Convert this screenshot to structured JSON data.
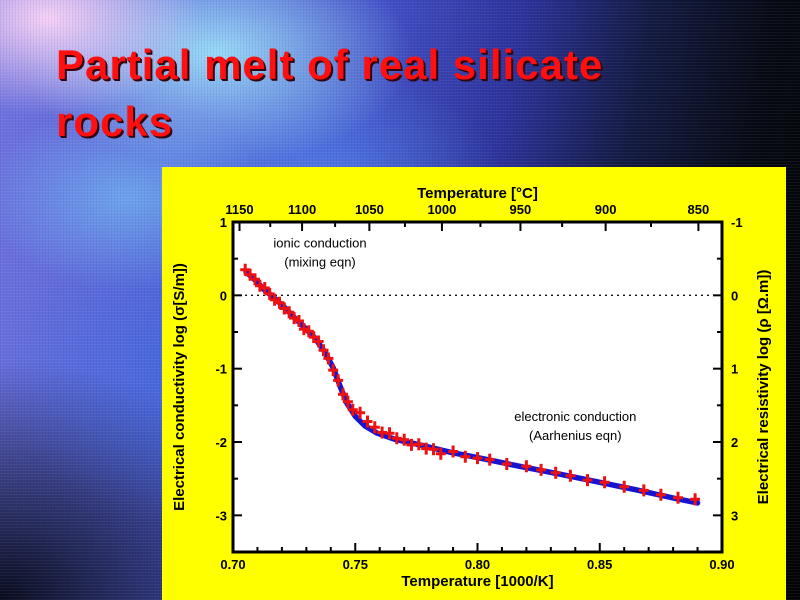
{
  "slide": {
    "title_line1": "Partial melt of real silicate",
    "title_line2": "rocks",
    "title_color": "#ff0f0f",
    "chart_background": "#ffff00"
  },
  "chart_data": {
    "type": "line",
    "title": "",
    "plot_background": "#ffffff",
    "grid": false,
    "top_axis": {
      "label": "Temperature [°C]",
      "ticks": [
        1150,
        1100,
        1050,
        1000,
        950,
        900,
        850
      ],
      "minor_ticks": [
        1125,
        1075,
        1025,
        975,
        925,
        875
      ]
    },
    "bottom_axis": {
      "label": "Temperature [1000/K]",
      "ticks": [
        0.7,
        0.75,
        0.8,
        0.85,
        0.9
      ],
      "range": [
        0.7,
        0.9
      ],
      "minor_step": 0.01
    },
    "left_axis": {
      "label": "Electrical conductivity log (σ[S/m])",
      "ticks": [
        1,
        0,
        -1,
        -2,
        -3
      ],
      "minor_ticks": [
        0.5,
        -0.5,
        -1.5,
        -2.5
      ],
      "range": [
        1,
        -3.5
      ]
    },
    "right_axis": {
      "label": "Electrical resistivity log (ρ [Ω.m])",
      "ticks": [
        -1,
        0,
        1,
        2,
        3
      ],
      "minor_ticks": [
        -0.5,
        0.5,
        1.5,
        2.5
      ]
    },
    "reference_line_y": 0,
    "annotations": [
      {
        "x": 0.7356,
        "y": 0.71,
        "lines": [
          "ionic conduction",
          "(mixing eqn)"
        ]
      },
      {
        "x": 0.84,
        "y": -1.66,
        "lines": [
          "electronic conduction",
          "(Aarhenius eqn)"
        ]
      }
    ],
    "line_series": {
      "name": "model curve",
      "color": "#1414d2",
      "points": [
        [
          0.7053,
          0.32
        ],
        [
          0.709,
          0.21
        ],
        [
          0.713,
          0.07
        ],
        [
          0.717,
          -0.04
        ],
        [
          0.721,
          -0.16
        ],
        [
          0.725,
          -0.3
        ],
        [
          0.729,
          -0.43
        ],
        [
          0.7335,
          -0.58
        ],
        [
          0.7375,
          -0.77
        ],
        [
          0.741,
          -0.99
        ],
        [
          0.7438,
          -1.24
        ],
        [
          0.7466,
          -1.47
        ],
        [
          0.75,
          -1.65
        ],
        [
          0.754,
          -1.78
        ],
        [
          0.759,
          -1.88
        ],
        [
          0.766,
          -1.96
        ],
        [
          0.7765,
          -2.04
        ],
        [
          0.789,
          -2.14
        ],
        [
          0.801,
          -2.22
        ],
        [
          0.817,
          -2.33
        ],
        [
          0.834,
          -2.44
        ],
        [
          0.85,
          -2.55
        ],
        [
          0.866,
          -2.66
        ],
        [
          0.881,
          -2.77
        ],
        [
          0.89,
          -2.83
        ]
      ]
    },
    "scatter_series": {
      "name": "measurements",
      "color": "#ee1111",
      "marker": "plus",
      "points": [
        [
          0.705,
          0.35
        ],
        [
          0.707,
          0.28
        ],
        [
          0.709,
          0.22
        ],
        [
          0.711,
          0.13
        ],
        [
          0.713,
          0.1
        ],
        [
          0.715,
          0.02
        ],
        [
          0.717,
          -0.06
        ],
        [
          0.719,
          -0.1
        ],
        [
          0.721,
          -0.18
        ],
        [
          0.723,
          -0.23
        ],
        [
          0.725,
          -0.31
        ],
        [
          0.727,
          -0.35
        ],
        [
          0.729,
          -0.46
        ],
        [
          0.731,
          -0.49
        ],
        [
          0.733,
          -0.57
        ],
        [
          0.735,
          -0.63
        ],
        [
          0.737,
          -0.75
        ],
        [
          0.739,
          -0.86
        ],
        [
          0.741,
          -1.02
        ],
        [
          0.743,
          -1.16
        ],
        [
          0.745,
          -1.35
        ],
        [
          0.747,
          -1.45
        ],
        [
          0.749,
          -1.56
        ],
        [
          0.752,
          -1.6
        ],
        [
          0.755,
          -1.72
        ],
        [
          0.758,
          -1.8
        ],
        [
          0.761,
          -1.87
        ],
        [
          0.764,
          -1.88
        ],
        [
          0.767,
          -1.95
        ],
        [
          0.77,
          -1.97
        ],
        [
          0.773,
          -2.04
        ],
        [
          0.776,
          -2.03
        ],
        [
          0.779,
          -2.09
        ],
        [
          0.782,
          -2.1
        ],
        [
          0.785,
          -2.16
        ],
        [
          0.79,
          -2.13
        ],
        [
          0.795,
          -2.2
        ],
        [
          0.8,
          -2.22
        ],
        [
          0.805,
          -2.24
        ],
        [
          0.812,
          -2.3
        ],
        [
          0.82,
          -2.33
        ],
        [
          0.826,
          -2.38
        ],
        [
          0.832,
          -2.42
        ],
        [
          0.838,
          -2.46
        ],
        [
          0.845,
          -2.52
        ],
        [
          0.852,
          -2.55
        ],
        [
          0.86,
          -2.61
        ],
        [
          0.868,
          -2.66
        ],
        [
          0.875,
          -2.72
        ],
        [
          0.882,
          -2.76
        ],
        [
          0.889,
          -2.78
        ]
      ]
    }
  }
}
